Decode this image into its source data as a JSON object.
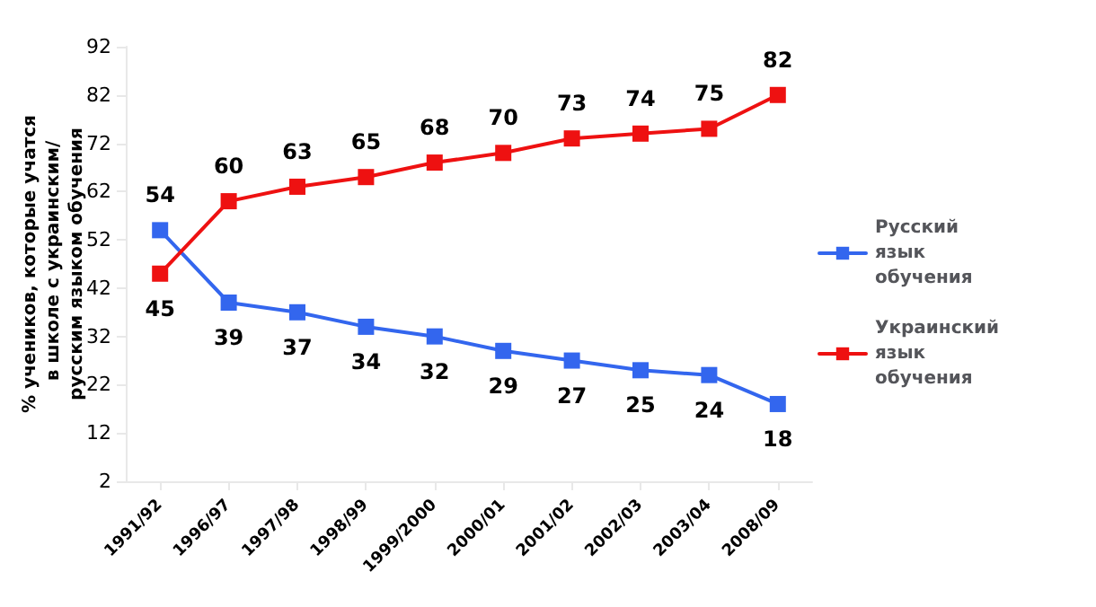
{
  "chart_data": {
    "type": "line",
    "ylabel": "% учеников, которые учатся в школе с украинским/русским языком обучения",
    "categories": [
      "1991/92",
      "1996/97",
      "1997/98",
      "1998/99",
      "1999/2000",
      "2000/01",
      "2001/02",
      "2002/03",
      "2003/04",
      "2008/09"
    ],
    "series": [
      {
        "name": "Русский язык обучения",
        "color": "#3366ee",
        "values": [
          54,
          39,
          37,
          34,
          32,
          29,
          27,
          25,
          24,
          18
        ]
      },
      {
        "name": "Украинский язык обучения",
        "color": "#ee1111",
        "values": [
          45,
          60,
          63,
          65,
          68,
          70,
          73,
          74,
          75,
          82
        ]
      }
    ],
    "ylim": [
      2,
      92
    ],
    "yticks": [
      2,
      12,
      22,
      32,
      42,
      52,
      62,
      72,
      82,
      92
    ],
    "grid": false,
    "legend": "right",
    "marker": "square",
    "line_style": "solid",
    "data_labels": true
  }
}
